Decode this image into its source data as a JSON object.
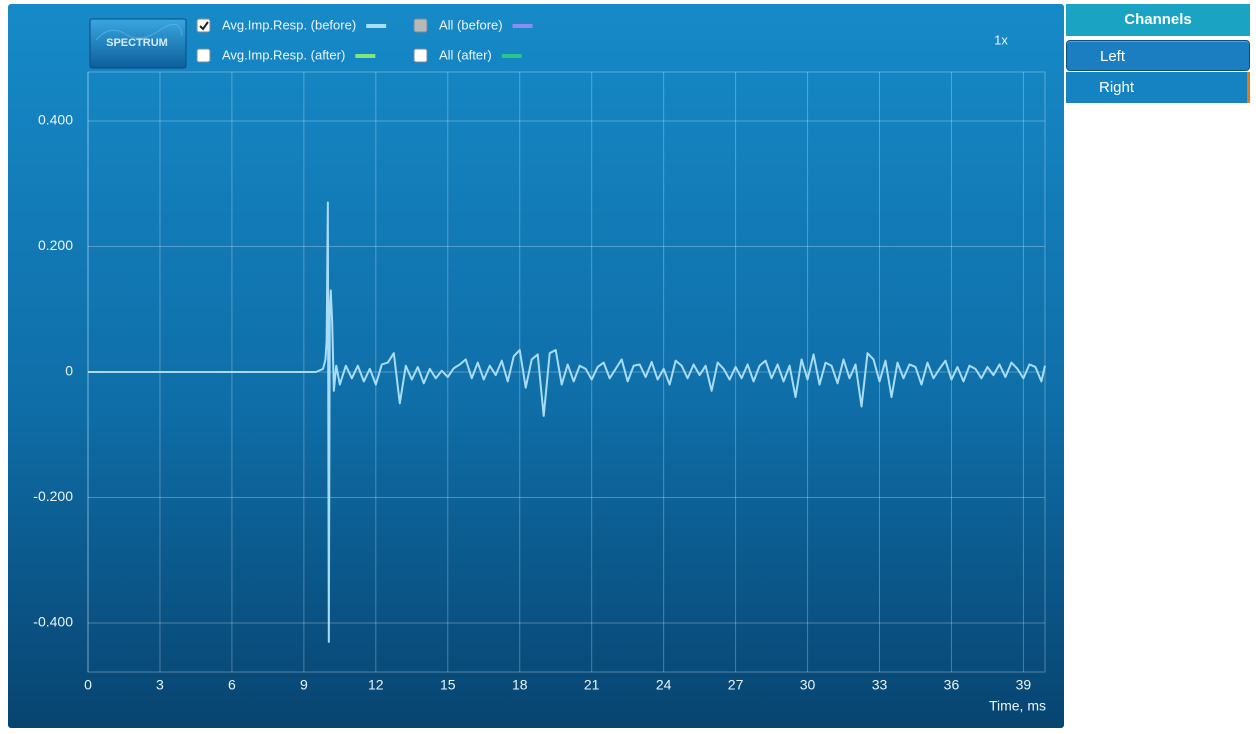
{
  "toolbar": {
    "spectrum_button": "SPECTRUM",
    "zoom_label": "1x"
  },
  "sidebar": {
    "header": "Channels",
    "channels": [
      {
        "label": "Left",
        "selected": true
      },
      {
        "label": "Right",
        "selected": false
      }
    ]
  },
  "chart_data": {
    "type": "line",
    "x_label": "Time, ms",
    "xlim": [
      0,
      39.9
    ],
    "xticks": [
      0,
      3,
      6,
      9,
      12,
      15,
      18,
      21,
      24,
      27,
      30,
      33,
      36,
      39
    ],
    "ylim": [
      -0.478,
      0.478
    ],
    "yticks": [
      {
        "value": -0.4,
        "label": "-0.400"
      },
      {
        "value": -0.2,
        "label": "-0.200"
      },
      0,
      {
        "value": 0.2,
        "label": "0.200"
      },
      {
        "value": 0.4,
        "label": "0.400"
      }
    ],
    "grid": true,
    "series": [
      {
        "name": "Avg.Imp.Resp. (before)",
        "color": "#a8dcf8",
        "checked": true,
        "disabled": false,
        "x": [
          0,
          9.5,
          9.8,
          9.9,
          9.95,
          10,
          10.04,
          10.08,
          10.12,
          10.18,
          10.25,
          10.35,
          10.5,
          10.75,
          11,
          11.25,
          11.5,
          11.75,
          12,
          12.25,
          12.5,
          12.75,
          13,
          13.25,
          13.5,
          13.75,
          14,
          14.25,
          14.5,
          14.75,
          15,
          15.25,
          15.5,
          15.75,
          16,
          16.25,
          16.5,
          16.75,
          17,
          17.25,
          17.5,
          17.75,
          18,
          18.25,
          18.5,
          18.75,
          19,
          19.25,
          19.5,
          19.75,
          20,
          20.25,
          20.5,
          20.75,
          21,
          21.25,
          21.5,
          21.75,
          22,
          22.25,
          22.5,
          22.75,
          23,
          23.25,
          23.5,
          23.75,
          24,
          24.25,
          24.5,
          24.75,
          25,
          25.25,
          25.5,
          25.75,
          26,
          26.25,
          26.5,
          26.75,
          27,
          27.25,
          27.5,
          27.75,
          28,
          28.25,
          28.5,
          28.75,
          29,
          29.25,
          29.5,
          29.75,
          30,
          30.25,
          30.5,
          30.75,
          31,
          31.25,
          31.5,
          31.75,
          32,
          32.25,
          32.5,
          32.75,
          33,
          33.25,
          33.5,
          33.75,
          34,
          34.25,
          34.5,
          34.75,
          35,
          35.25,
          35.5,
          35.75,
          36,
          36.25,
          36.5,
          36.75,
          37,
          37.25,
          37.5,
          37.75,
          38,
          38.25,
          38.5,
          38.75,
          39,
          39.25,
          39.5,
          39.75,
          39.9
        ],
        "values": [
          0,
          0,
          0.005,
          0.02,
          0.05,
          0.27,
          -0.43,
          0.1,
          0.13,
          0.08,
          -0.03,
          0.01,
          -0.02,
          0.01,
          -0.01,
          0.01,
          -0.015,
          0.005,
          -0.02,
          0.012,
          0.015,
          0.03,
          -0.05,
          0.01,
          -0.012,
          0.008,
          -0.018,
          0.005,
          -0.01,
          0.002,
          -0.008,
          0.006,
          0.012,
          0.02,
          -0.01,
          0.015,
          -0.012,
          0.01,
          -0.005,
          0.018,
          -0.015,
          0.025,
          0.035,
          -0.025,
          0.02,
          0.028,
          -0.07,
          0.03,
          0.035,
          -0.02,
          0.012,
          -0.015,
          0.01,
          0.005,
          -0.012,
          0.008,
          0.015,
          -0.01,
          0.005,
          0.02,
          -0.015,
          0.01,
          0.012,
          -0.008,
          0.016,
          -0.012,
          0.005,
          -0.02,
          0.018,
          0.01,
          -0.01,
          0.012,
          -0.005,
          0.01,
          -0.03,
          0.015,
          0.005,
          -0.012,
          0.008,
          -0.01,
          0.012,
          -0.015,
          0.01,
          0.018,
          -0.01,
          0.012,
          -0.015,
          0.01,
          -0.04,
          0.02,
          -0.012,
          0.028,
          -0.02,
          0.015,
          0.01,
          -0.018,
          0.02,
          -0.01,
          0.012,
          -0.055,
          0.03,
          0.02,
          -0.015,
          0.018,
          -0.04,
          0.015,
          -0.01,
          0.012,
          0.008,
          -0.02,
          0.015,
          -0.01,
          0.005,
          0.018,
          -0.012,
          0.008,
          -0.015,
          0.01,
          0.005,
          -0.01,
          0.008,
          -0.005,
          0.012,
          -0.008,
          0.015,
          0.005,
          -0.01,
          0.012,
          0.008,
          -0.015,
          0.01
        ]
      },
      {
        "name": "All (before)",
        "color": "#8a8ef2",
        "checked": false,
        "disabled": true
      },
      {
        "name": "Avg.Imp.Resp. (after)",
        "color": "#7ee87a",
        "checked": false,
        "disabled": false
      },
      {
        "name": "All (after)",
        "color": "#22c88e",
        "checked": false,
        "disabled": false
      }
    ]
  }
}
